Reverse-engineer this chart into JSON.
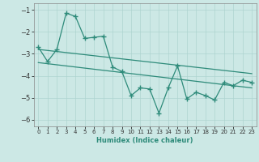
{
  "xlabel": "Humidex (Indice chaleur)",
  "x": [
    0,
    1,
    2,
    3,
    4,
    5,
    6,
    7,
    8,
    9,
    10,
    11,
    12,
    13,
    14,
    15,
    16,
    17,
    18,
    19,
    20,
    21,
    22,
    23
  ],
  "line1": [
    -2.7,
    -3.35,
    -2.8,
    -1.15,
    -1.3,
    -2.3,
    -2.25,
    -2.2,
    -3.6,
    -3.8,
    -4.9,
    -4.55,
    -4.6,
    -5.7,
    -4.55,
    -3.55,
    -5.05,
    -4.75,
    -4.9,
    -5.1,
    -4.3,
    -4.45,
    -4.2,
    -4.3
  ],
  "line2_x": [
    0,
    23
  ],
  "line2_y": [
    -2.8,
    -3.9
  ],
  "line3_x": [
    0,
    23
  ],
  "line3_y": [
    -3.4,
    -4.55
  ],
  "line_color": "#2e8b7a",
  "bg_color": "#cce8e5",
  "grid_color": "#aed4d0",
  "ylim": [
    -6.3,
    -0.7
  ],
  "xlim": [
    -0.5,
    23.5
  ],
  "yticks": [
    -6,
    -5,
    -4,
    -3,
    -2,
    -1
  ],
  "xticks": [
    0,
    1,
    2,
    3,
    4,
    5,
    6,
    7,
    8,
    9,
    10,
    11,
    12,
    13,
    14,
    15,
    16,
    17,
    18,
    19,
    20,
    21,
    22,
    23
  ],
  "marker": "+",
  "markersize": 4,
  "linewidth": 0.9
}
